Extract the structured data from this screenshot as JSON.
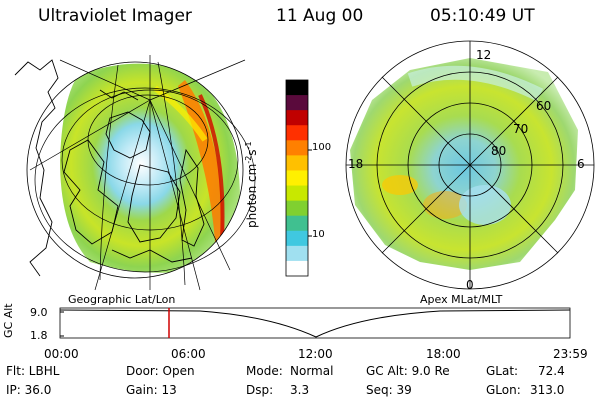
{
  "header": {
    "instrument": "Ultraviolet Imager",
    "date": "11 Aug 00",
    "time": "05:10:49 UT"
  },
  "geo_map": {
    "label": "Geographic Lat/Lon"
  },
  "polar_map": {
    "label": "Apex  MLat/MLT",
    "hour_labels": [
      "12",
      "18",
      "6",
      "0"
    ],
    "lat_labels": [
      "60",
      "70",
      "80"
    ]
  },
  "colorbar": {
    "unit": "photon cm",
    "unit_sup1": "-2",
    "unit_mid": "s",
    "unit_sup2": "-1",
    "ticks": [
      "100",
      "10"
    ],
    "colors": [
      "#000000",
      "#5a0a3c",
      "#c00000",
      "#ff3000",
      "#ff8000",
      "#ffc000",
      "#fff000",
      "#c8e800",
      "#80d030",
      "#40c090",
      "#40c8e0",
      "#a0e0f0",
      "#ffffff"
    ]
  },
  "altitude_plot": {
    "axis_label": "GC Alt",
    "y_ticks": [
      "9.0",
      "1.8"
    ],
    "time_ticks": [
      "00:00",
      "06:00",
      "12:00",
      "18:00",
      "23:59"
    ],
    "current_time_color": "#d00000"
  },
  "footer": {
    "filter": "Flt: LBHL",
    "door": "Door: Open",
    "mode_label": "Mode:",
    "mode_value": "Normal",
    "gc_alt": "GC Alt: 9.0 Re",
    "glat_label": "GLat:",
    "glat_value": "72.4",
    "ip": "IP: 36.0",
    "gain": "Gain: 13",
    "dsp_label": "Dsp:",
    "dsp_value": "3.3",
    "seq": "Seq: 39",
    "glon_label": "GLon:",
    "glon_value": "313.0"
  }
}
